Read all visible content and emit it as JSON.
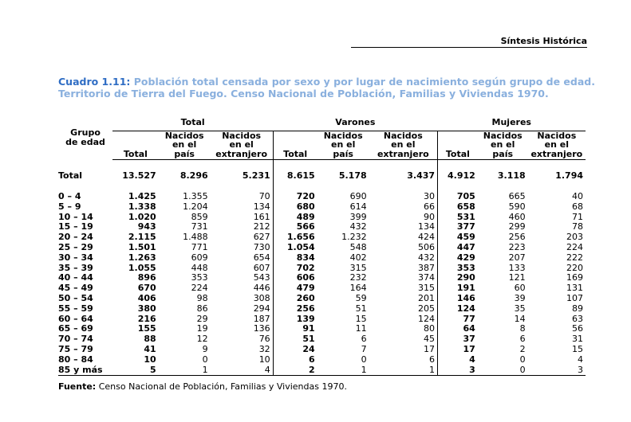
{
  "header": {
    "title": "Síntesis Histórica"
  },
  "caption": {
    "lead": "Cuadro 1.11:",
    "text": " Población total censada por sexo y por lugar de nacimiento según grupo de edad. Territorio de Tierra del Fuego. Censo Nacional de Población, Familias y Viviendas 1970."
  },
  "table": {
    "group_col": "Grupo de edad",
    "groups": [
      "Total",
      "Varones",
      "Mujeres"
    ],
    "subheaders": [
      "Total",
      "Nacidos en el país",
      "Nacidos en el extranjero"
    ],
    "total_row": [
      "Total",
      "13.527",
      "8.296",
      "5.231",
      "8.615",
      "5.178",
      "3.437",
      "4.912",
      "3.118",
      "1.794"
    ],
    "rows": [
      [
        "0 – 4",
        "1.425",
        "1.355",
        "70",
        "720",
        "690",
        "30",
        "705",
        "665",
        "40"
      ],
      [
        "5 – 9",
        "1.338",
        "1.204",
        "134",
        "680",
        "614",
        "66",
        "658",
        "590",
        "68"
      ],
      [
        "10 – 14",
        "1.020",
        "859",
        "161",
        "489",
        "399",
        "90",
        "531",
        "460",
        "71"
      ],
      [
        "15 – 19",
        "943",
        "731",
        "212",
        "566",
        "432",
        "134",
        "377",
        "299",
        "78"
      ],
      [
        "20 – 24",
        "2.115",
        "1.488",
        "627",
        "1.656",
        "1.232",
        "424",
        "459",
        "256",
        "203"
      ],
      [
        "25 – 29",
        "1.501",
        "771",
        "730",
        "1.054",
        "548",
        "506",
        "447",
        "223",
        "224"
      ],
      [
        "30 – 34",
        "1.263",
        "609",
        "654",
        "834",
        "402",
        "432",
        "429",
        "207",
        "222"
      ],
      [
        "35 – 39",
        "1.055",
        "448",
        "607",
        "702",
        "315",
        "387",
        "353",
        "133",
        "220"
      ],
      [
        "40 – 44",
        "896",
        "353",
        "543",
        "606",
        "232",
        "374",
        "290",
        "121",
        "169"
      ],
      [
        "45 – 49",
        "670",
        "224",
        "446",
        "479",
        "164",
        "315",
        "191",
        "60",
        "131"
      ],
      [
        "50 – 54",
        "406",
        "98",
        "308",
        "260",
        "59",
        "201",
        "146",
        "39",
        "107"
      ],
      [
        "55 – 59",
        "380",
        "86",
        "294",
        "256",
        "51",
        "205",
        "124",
        "35",
        "89"
      ],
      [
        "60 – 64",
        "216",
        "29",
        "187",
        "139",
        "15",
        "124",
        "77",
        "14",
        "63"
      ],
      [
        "65 – 69",
        "155",
        "19",
        "136",
        "91",
        "11",
        "80",
        "64",
        "8",
        "56"
      ],
      [
        "70 – 74",
        "88",
        "12",
        "76",
        "51",
        "6",
        "45",
        "37",
        "6",
        "31"
      ],
      [
        "75 – 79",
        "41",
        "9",
        "32",
        "24",
        "7",
        "17",
        "17",
        "2",
        "15"
      ],
      [
        "80 – 84",
        "10",
        "0",
        "10",
        "6",
        "0",
        "6",
        "4",
        "0",
        "4"
      ],
      [
        "85 y más",
        "5",
        "1",
        "4",
        "2",
        "1",
        "1",
        "3",
        "0",
        "3"
      ]
    ]
  },
  "footer": {
    "label": "Fuente:",
    "text": " Censo Nacional de Población, Familias y Viviendas 1970."
  }
}
